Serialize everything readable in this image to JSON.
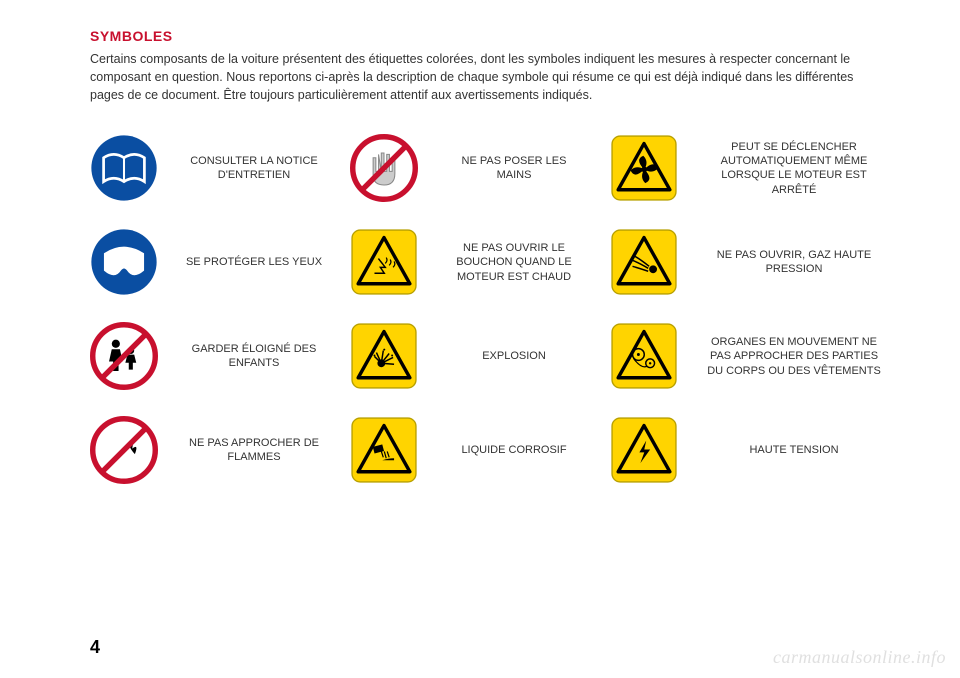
{
  "title": "SYMBOLES",
  "intro": "Certains composants de la voiture présentent des étiquettes colorées, dont les symboles indiquent les mesures à respecter concernant le composant en question. Nous reportons ci-après la description de chaque symbole qui résume ce qui est déjà indiqué dans les différentes pages de ce document. Être toujours particulièrement attentif aux avertissements indiqués.",
  "colors": {
    "red": "#c8102e",
    "blue": "#0a4ea2",
    "yellow": "#ffd400",
    "yellow_stroke": "#b8a000",
    "black": "#000000",
    "gray": "#cccccc",
    "white": "#ffffff"
  },
  "rows": [
    {
      "c1": {
        "type": "blue-circle",
        "glyph": "book"
      },
      "l1": "CONSULTER LA NOTICE D'ENTRETIEN",
      "c2": {
        "type": "prohibit",
        "glyph": "hand"
      },
      "l2": "NE PAS POSER LES MAINS",
      "c3": {
        "type": "warn",
        "glyph": "fan"
      },
      "l3": "PEUT SE DÉCLENCHER AUTOMATIQUEMENT MÊME LORSQUE LE MOTEUR EST ARRÊTÉ"
    },
    {
      "c1": {
        "type": "blue-circle",
        "glyph": "goggles"
      },
      "l1": "SE PROTÉGER LES YEUX",
      "c2": {
        "type": "warn",
        "glyph": "hot"
      },
      "l2": "NE PAS OUVRIR LE BOUCHON QUAND LE MOTEUR EST CHAUD",
      "c3": {
        "type": "warn",
        "glyph": "jet"
      },
      "l3": "NE PAS OUVRIR, GAZ HAUTE PRESSION"
    },
    {
      "c1": {
        "type": "prohibit",
        "glyph": "children"
      },
      "l1": "GARDER ÉLOIGNÉ DES ENFANTS",
      "c2": {
        "type": "warn",
        "glyph": "explosion"
      },
      "l2": "EXPLOSION",
      "c3": {
        "type": "warn",
        "glyph": "belts"
      },
      "l3": "ORGANES EN MOUVEMENT NE PAS APPROCHER DES PARTIES DU CORPS OU DES VÊTEMENTS"
    },
    {
      "c1": {
        "type": "prohibit",
        "glyph": "flame"
      },
      "l1": "NE PAS APPROCHER DE FLAMMES",
      "c2": {
        "type": "warn",
        "glyph": "corrosive"
      },
      "l2": "LIQUIDE CORROSIF",
      "c3": {
        "type": "warn",
        "glyph": "hv"
      },
      "l3": "HAUTE TENSION"
    }
  ],
  "page_number": "4",
  "watermark": "carmanualsonline.info"
}
